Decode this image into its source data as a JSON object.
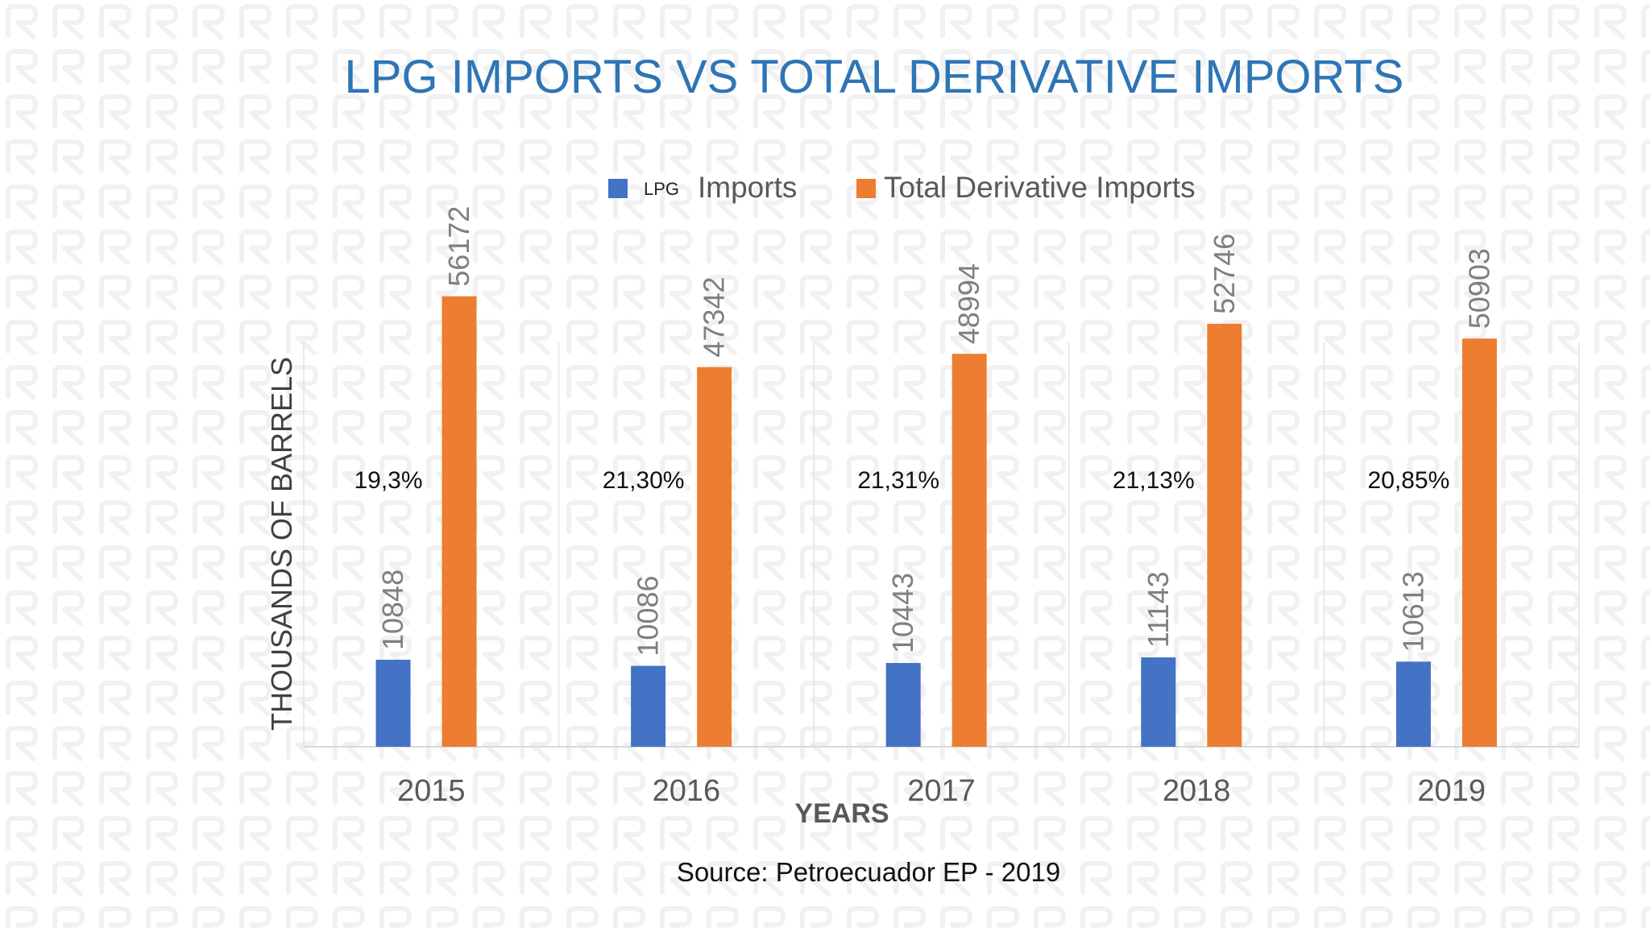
{
  "chart_data": {
    "type": "bar",
    "title": "LPG IMPORTS VS TOTAL DERIVATIVE IMPORTS",
    "xlabel": "YEARS",
    "ylabel": "THOUSANDS OF BARRELS",
    "source": "Source: Petroecuador EP - 2019",
    "categories": [
      "2015",
      "2016",
      "2017",
      "2018",
      "2019"
    ],
    "ylim": [
      0,
      67000
    ],
    "grid": "vertical category separators",
    "legend_position": "top",
    "legend": {
      "lpg_prefix": "LPG",
      "lpg_label": "Imports",
      "total_label": "Total Derivative Imports"
    },
    "series": [
      {
        "name": "LPG Imports",
        "color": "#4472C4",
        "values": [
          10848,
          10086,
          10443,
          11143,
          10613
        ]
      },
      {
        "name": "Total Derivative Imports",
        "color": "#ED7D31",
        "values": [
          56172,
          47342,
          48994,
          52746,
          50903
        ]
      }
    ],
    "annotations": [
      "19,3%",
      "21,30%",
      "21,31%",
      "21,13%",
      "20,85%"
    ]
  }
}
